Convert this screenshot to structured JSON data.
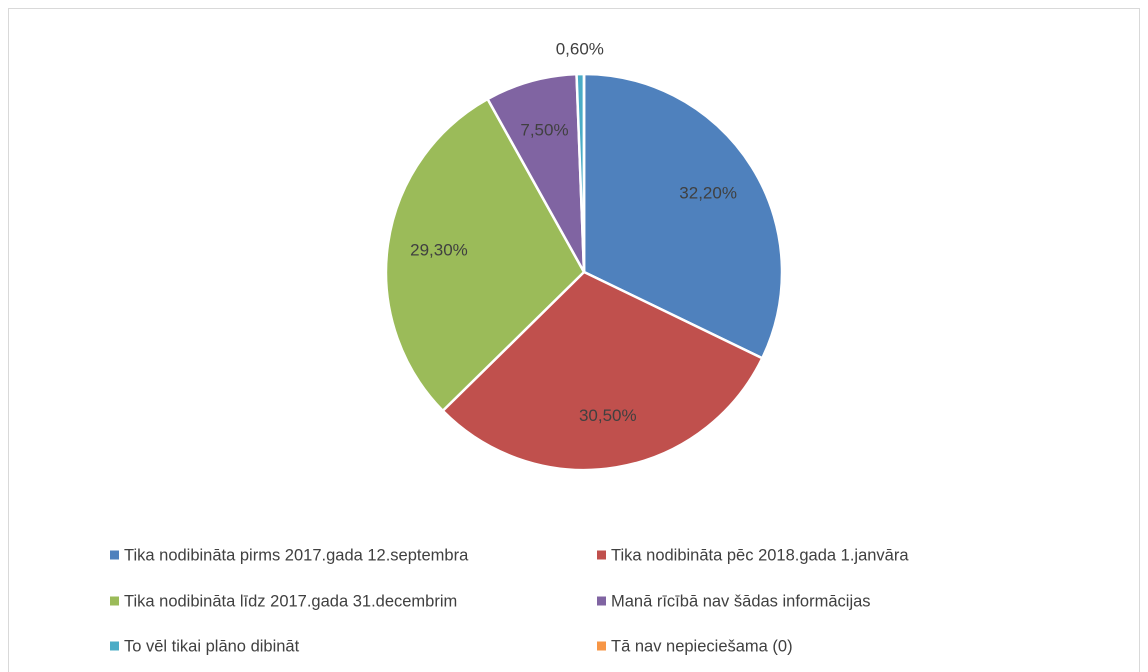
{
  "chart_data": {
    "type": "pie",
    "categories": [
      "Tika nodibināta pirms 2017.gada 12.septembra",
      "Tika nodibināta pēc 2018.gada 1.janvāra",
      "Tika nodibināta līdz 2017.gada 31.decembrim",
      "Manā rīcībā nav šādas informācijas",
      "To vēl tikai plāno dibināt",
      "Tā nav nepieciešama (0)"
    ],
    "values": [
      32.2,
      30.5,
      29.3,
      7.5,
      0.6,
      0
    ],
    "value_labels": [
      "32,20%",
      "30,50%",
      "29,30%",
      "7,50%",
      "0,60%",
      null
    ],
    "colors": [
      "#4f81bd",
      "#c0504d",
      "#9bbb59",
      "#8064a2",
      "#4bacc6",
      "#f79646"
    ],
    "legend": "bottom"
  }
}
